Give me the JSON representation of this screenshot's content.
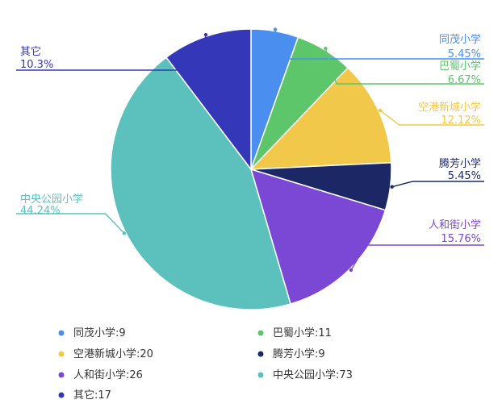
{
  "chart_data": {
    "type": "pie",
    "title": "",
    "unit": "",
    "slices": [
      {
        "label": "同茂小学",
        "value": 9,
        "percent": "5.45%",
        "color": "#4a8ef0"
      },
      {
        "label": "巴蜀小学",
        "value": 11,
        "percent": "6.67%",
        "color": "#5ec66a"
      },
      {
        "label": "空港新城小学",
        "value": 20,
        "percent": "12.12%",
        "color": "#f2c84a"
      },
      {
        "label": "腾芳小学",
        "value": 9,
        "percent": "5.45%",
        "color": "#1c2866"
      },
      {
        "label": "人和街小学",
        "value": 26,
        "percent": "15.76%",
        "color": "#7a48d4"
      },
      {
        "label": "中央公园小学",
        "value": 73,
        "percent": "44.24%",
        "color": "#5cc0bc"
      },
      {
        "label": "其它",
        "value": 17,
        "percent": "10.3%",
        "color": "#3438b8"
      }
    ],
    "legend": {
      "position": "bottom",
      "items": [
        "同茂小学:9",
        "巴蜀小学:11",
        "空港新城小学:20",
        "腾芳小学:9",
        "人和街小学:26",
        "中央公园小学:73",
        "其它:17"
      ]
    }
  }
}
